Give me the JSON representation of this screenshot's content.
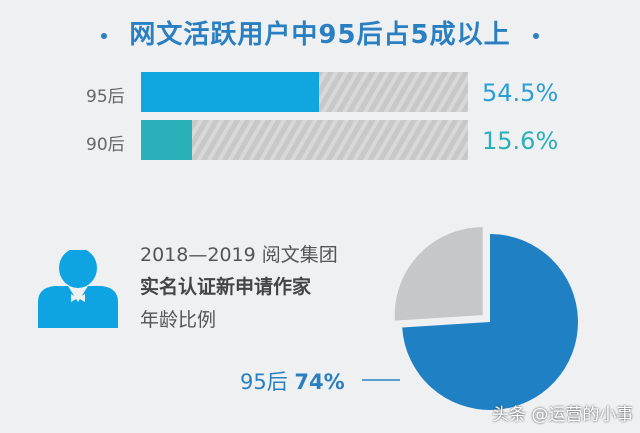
{
  "title": "网文活跃用户中95后占5成以上",
  "chart_data": [
    {
      "type": "bar",
      "categories": [
        "95后",
        "90后"
      ],
      "values": [
        54.5,
        15.6
      ],
      "value_labels": [
        "54.5%",
        "15.6%"
      ],
      "colors": [
        "#10a6e0",
        "#2ab0b8"
      ],
      "xlim": [
        0,
        100
      ]
    },
    {
      "type": "pie",
      "title_lines": [
        "2018—2019 阅文集团",
        "实名认证新申请作家",
        "年龄比例"
      ],
      "slices": [
        {
          "name": "95后",
          "value": 74,
          "label": "74%",
          "color": "#1f80c4"
        },
        {
          "value": 26,
          "color": "#c6c7c9"
        }
      ]
    }
  ],
  "icons": {
    "person": "person-bowtie-icon"
  },
  "watermark": "头条 @运营的小事"
}
